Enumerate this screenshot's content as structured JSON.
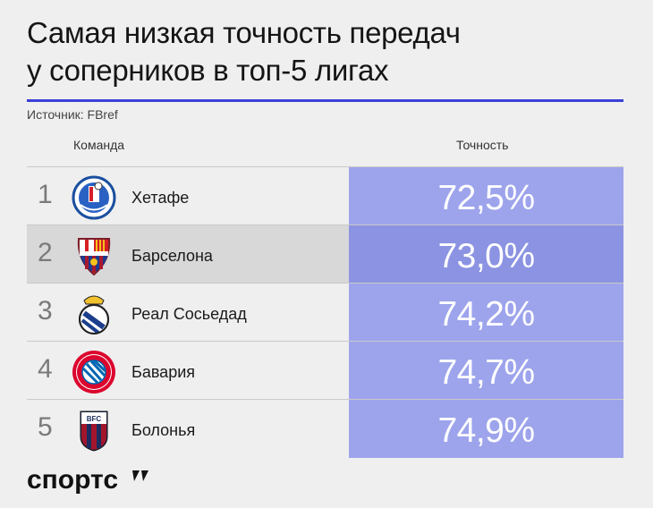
{
  "title_lines": [
    "Самая низкая точность передач",
    "у соперников в топ-5 лигах"
  ],
  "source": "Источник: FBref",
  "headers": {
    "team": "Команда",
    "accuracy": "Точность"
  },
  "brand": "спортс''",
  "colors": {
    "accent": "#3b3fd6",
    "bar": "#9da4ec",
    "bar_highlight": "#8b93e2",
    "row_highlight": "#d8d8d8"
  },
  "chart_data": {
    "type": "table",
    "columns": [
      "",
      "Команда",
      "Точность"
    ],
    "rows": [
      {
        "rank": "1",
        "team": "Хетафе",
        "value": 72.5,
        "label": "72,5%",
        "logo": "getafe-crest-icon"
      },
      {
        "rank": "2",
        "team": "Барселона",
        "value": 73.0,
        "label": "73,0%",
        "logo": "barcelona-crest-icon",
        "highlight": true
      },
      {
        "rank": "3",
        "team": "Реал Сосьедад",
        "value": 74.2,
        "label": "74,2%",
        "logo": "real-sociedad-crest-icon"
      },
      {
        "rank": "4",
        "team": "Бавария",
        "value": 74.7,
        "label": "74,7%",
        "logo": "bayern-crest-icon"
      },
      {
        "rank": "5",
        "team": "Болонья",
        "value": 74.9,
        "label": "74,9%",
        "logo": "bologna-crest-icon"
      }
    ]
  }
}
